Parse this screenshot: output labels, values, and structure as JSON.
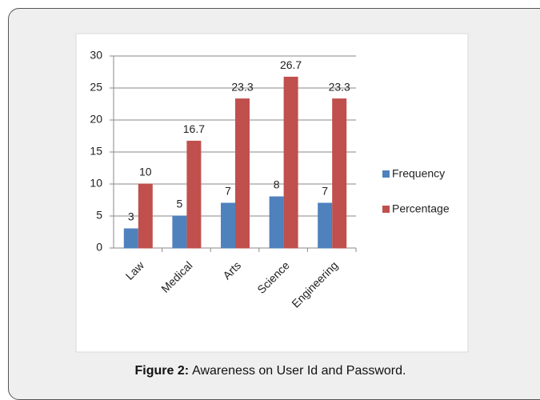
{
  "chart_data": {
    "type": "bar",
    "categories": [
      "Law",
      "Medical",
      "Arts",
      "Science",
      "Engineering"
    ],
    "series": [
      {
        "name": "Frequency",
        "color": "#4f81bd",
        "values": [
          3,
          5,
          7,
          8,
          7
        ]
      },
      {
        "name": "Percentage",
        "color": "#c0504d",
        "values": [
          10,
          16.7,
          23.3,
          26.7,
          23.3
        ]
      }
    ],
    "ylim": [
      0,
      30
    ],
    "yticks": [
      0,
      5,
      10,
      15,
      20,
      25,
      30
    ],
    "grid": true,
    "legend": "right"
  },
  "caption": {
    "label": "Figure 2:",
    "text": "Awareness on User Id and Password."
  }
}
